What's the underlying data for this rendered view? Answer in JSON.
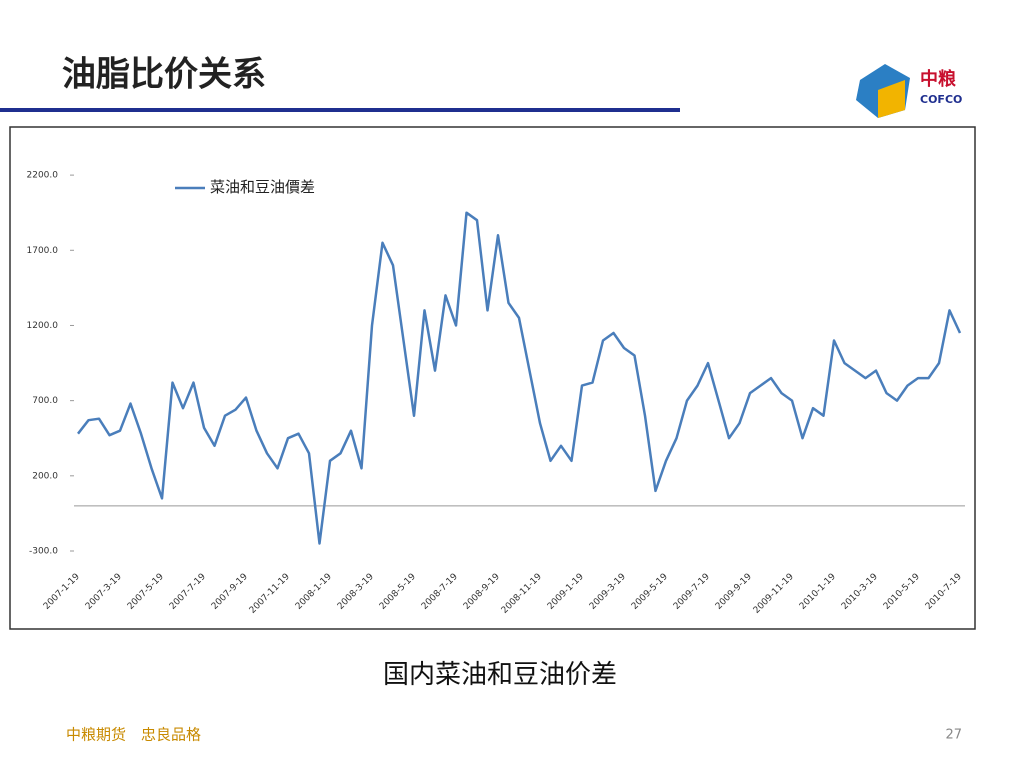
{
  "slide": {
    "title": "油脂比价关系",
    "logo_cn": "中粮",
    "logo_en": "COFCO",
    "caption": "国内菜油和豆油价差",
    "footer": "中粮期货　忠良品格",
    "page": "27"
  },
  "chart_data": {
    "type": "line",
    "categories": [
      "2007-1-19",
      null,
      null,
      null,
      "2007-3-19",
      null,
      null,
      null,
      "2007-5-19",
      null,
      null,
      null,
      "2007-7-19",
      null,
      null,
      null,
      "2007-9-19",
      null,
      null,
      null,
      "2007-11-19",
      null,
      null,
      null,
      "2008-1-19",
      null,
      null,
      null,
      "2008-3-19",
      null,
      null,
      null,
      "2008-5-19",
      null,
      null,
      null,
      "2008-7-19",
      null,
      null,
      null,
      "2008-9-19",
      null,
      null,
      null,
      "2008-11-19",
      null,
      null,
      null,
      "2009-1-19",
      null,
      null,
      null,
      "2009-3-19",
      null,
      null,
      null,
      "2009-5-19",
      null,
      null,
      null,
      "2009-7-19",
      null,
      null,
      null,
      "2009-9-19",
      null,
      null,
      null,
      "2009-11-19",
      null,
      null,
      null,
      "2010-1-19",
      null,
      null,
      null,
      "2010-3-19",
      null,
      null,
      null,
      "2010-5-19",
      null,
      null,
      null,
      "2010-7-19"
    ],
    "series": [
      {
        "name": "菜油和豆油價差",
        "color": "#4a7ebb",
        "values": [
          480,
          570,
          580,
          470,
          500,
          680,
          480,
          250,
          50,
          820,
          650,
          820,
          520,
          400,
          600,
          640,
          720,
          500,
          350,
          250,
          450,
          480,
          350,
          -250,
          300,
          350,
          500,
          250,
          1200,
          1750,
          1600,
          1100,
          600,
          1300,
          900,
          1400,
          1200,
          1950,
          1900,
          1300,
          1800,
          1350,
          1250,
          900,
          550,
          300,
          400,
          300,
          800,
          820,
          1100,
          1150,
          1050,
          1000,
          600,
          100,
          300,
          450,
          700,
          800,
          950,
          700,
          450,
          550,
          750,
          800,
          850,
          750,
          700,
          450,
          650,
          600,
          1100,
          950,
          900,
          850,
          900,
          750,
          700,
          800,
          850,
          850,
          950,
          1300,
          1150
        ]
      }
    ],
    "ylim": [
      -300,
      2500
    ],
    "yticks": [
      {
        "value": -300,
        "label": "-300.0"
      },
      {
        "value": 200,
        "label": "200.0"
      },
      {
        "value": 700,
        "label": "700.0"
      },
      {
        "value": 1200,
        "label": "1200.0"
      },
      {
        "value": 1700,
        "label": "1700.0"
      },
      {
        "value": 2200,
        "label": "2200.0"
      }
    ],
    "grid": false,
    "legend": "top-left"
  }
}
